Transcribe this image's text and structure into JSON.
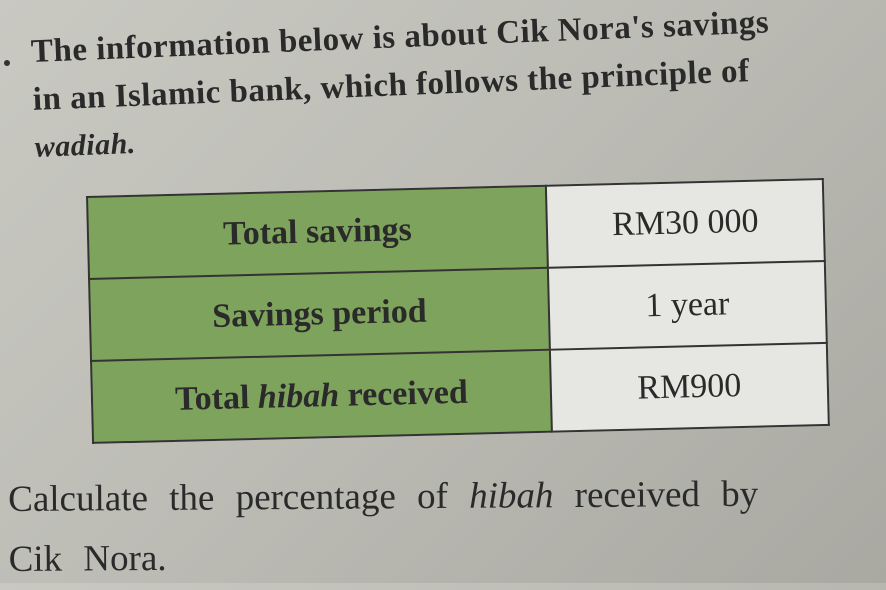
{
  "intro": {
    "line1": "The information below is about Cik Nora's savings",
    "line2": "in an Islamic bank, which follows the principle of",
    "line3": "wadiah."
  },
  "table": {
    "rows": [
      {
        "label_pre": "Total savings",
        "label_em": "",
        "label_post": "",
        "value": "RM30 000"
      },
      {
        "label_pre": "Savings period",
        "label_em": "",
        "label_post": "",
        "value": "1 year"
      },
      {
        "label_pre": "Total ",
        "label_em": "hibah",
        "label_post": " received",
        "value": "RM900"
      }
    ],
    "colors": {
      "label_bg": "#7ea35c",
      "value_bg": "#e6e6e3"
    }
  },
  "question": {
    "line1_pre": "Calculate the percentage of ",
    "line1_em": "hibah",
    "line1_post": " received by",
    "line2": "Cik Nora."
  }
}
